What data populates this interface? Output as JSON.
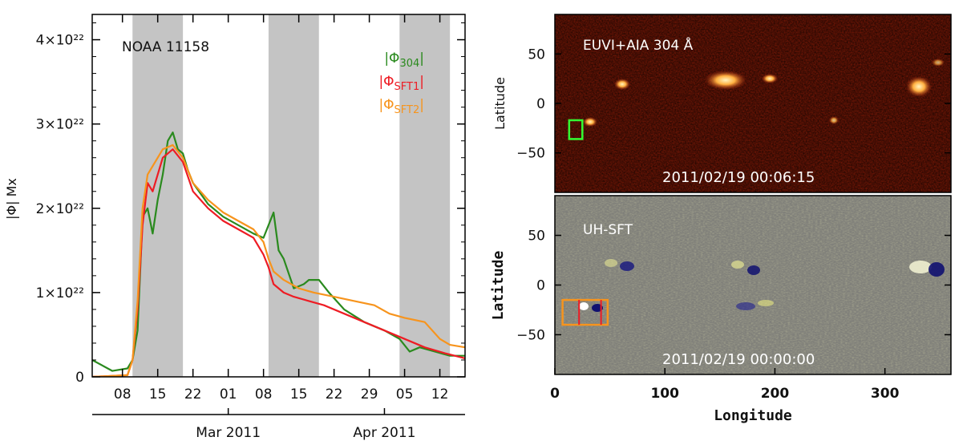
{
  "chart_data": [
    {
      "type": "line",
      "annotation": "NOAA 11158",
      "ylabel": "|Φ| Mx",
      "ylim": [
        0,
        4.3e+22
      ],
      "y_ticks": [
        {
          "value": 0,
          "label": "0"
        },
        {
          "value": 1e+22,
          "label": "1×10²²"
        },
        {
          "value": 2e+22,
          "label": "2×10²²"
        },
        {
          "value": 3e+22,
          "label": "3×10²²"
        },
        {
          "value": 4e+22,
          "label": "4×10²²"
        }
      ],
      "xlim": [
        "2011-02-02",
        "2011-04-17"
      ],
      "x_ticks": [
        {
          "date": "2011-02-08",
          "label": "08"
        },
        {
          "date": "2011-02-15",
          "label": "15"
        },
        {
          "date": "2011-02-22",
          "label": "22"
        },
        {
          "date": "2011-03-01",
          "label": "01"
        },
        {
          "date": "2011-03-08",
          "label": "08"
        },
        {
          "date": "2011-03-15",
          "label": "15"
        },
        {
          "date": "2011-03-22",
          "label": "22"
        },
        {
          "date": "2011-03-29",
          "label": "29"
        },
        {
          "date": "2011-04-05",
          "label": "05"
        },
        {
          "date": "2011-04-12",
          "label": "12"
        }
      ],
      "month_axis": [
        {
          "date": "2011-03-01",
          "label": "Mar 2011"
        },
        {
          "date": "2011-04-01",
          "label": "Apr 2011"
        }
      ],
      "shaded_intervals": [
        {
          "start": "2011-02-10",
          "end": "2011-02-20"
        },
        {
          "start": "2011-03-09",
          "end": "2011-03-19"
        },
        {
          "start": "2011-04-04",
          "end": "2011-04-14"
        }
      ],
      "shade_color": "#c4c4c4",
      "legend_position": "top-right",
      "series": [
        {
          "name": "|Φ304|",
          "name_base": "|Φ",
          "name_sub": "304",
          "name_end": "|",
          "color": "#2a8a1e",
          "x": [
            "2011-02-02",
            "2011-02-06",
            "2011-02-09",
            "2011-02-10",
            "2011-02-11",
            "2011-02-12",
            "2011-02-13",
            "2011-02-14",
            "2011-02-15",
            "2011-02-16",
            "2011-02-17",
            "2011-02-18",
            "2011-02-19",
            "2011-02-20",
            "2011-02-21",
            "2011-02-22",
            "2011-02-25",
            "2011-02-28",
            "2011-03-03",
            "2011-03-06",
            "2011-03-08",
            "2011-03-09",
            "2011-03-10",
            "2011-03-11",
            "2011-03-12",
            "2011-03-14",
            "2011-03-16",
            "2011-03-17",
            "2011-03-19",
            "2011-03-21",
            "2011-03-24",
            "2011-03-28",
            "2011-04-01",
            "2011-04-04",
            "2011-04-06",
            "2011-04-08",
            "2011-04-11",
            "2011-04-14",
            "2011-04-17"
          ],
          "y": [
            2e+21,
            7e+20,
            1e+21,
            2e+21,
            5.5e+21,
            1.9e+22,
            2e+22,
            1.7e+22,
            2.1e+22,
            2.4e+22,
            2.8e+22,
            2.9e+22,
            2.7e+22,
            2.65e+22,
            2.45e+22,
            2.3e+22,
            2.05e+22,
            1.9e+22,
            1.8e+22,
            1.7e+22,
            1.65e+22,
            1.8e+22,
            1.95e+22,
            1.5e+22,
            1.4e+22,
            1.05e+22,
            1.1e+22,
            1.15e+22,
            1.15e+22,
            1e+22,
            8e+21,
            6.5e+21,
            5.5e+21,
            4.5e+21,
            3e+21,
            3.5e+21,
            3e+21,
            2.5e+21,
            2.5e+21
          ]
        },
        {
          "name": "|ΦSFT1|",
          "name_base": "|Φ",
          "name_sub": "SFT1",
          "name_end": "|",
          "color": "#ee1c24",
          "x": [
            "2011-02-02",
            "2011-02-09",
            "2011-02-10",
            "2011-02-11",
            "2011-02-12",
            "2011-02-13",
            "2011-02-14",
            "2011-02-15",
            "2011-02-16",
            "2011-02-18",
            "2011-02-20",
            "2011-02-22",
            "2011-02-25",
            "2011-02-28",
            "2011-03-03",
            "2011-03-06",
            "2011-03-08",
            "2011-03-09",
            "2011-03-10",
            "2011-03-12",
            "2011-03-14",
            "2011-03-17",
            "2011-03-20",
            "2011-03-24",
            "2011-03-28",
            "2011-04-01",
            "2011-04-05",
            "2011-04-09",
            "2011-04-13",
            "2011-04-17"
          ],
          "y": [
            0.0,
            2e+20,
            2e+21,
            8e+21,
            1.8e+22,
            2.3e+22,
            2.2e+22,
            2.4e+22,
            2.6e+22,
            2.7e+22,
            2.55e+22,
            2.2e+22,
            2e+22,
            1.85e+22,
            1.75e+22,
            1.65e+22,
            1.45e+22,
            1.3e+22,
            1.1e+22,
            1e+22,
            9.5e+21,
            9e+21,
            8.5e+21,
            7.5e+21,
            6.5e+21,
            5.5e+21,
            4.5e+21,
            3.5e+21,
            2.8e+21,
            2.2e+21
          ]
        },
        {
          "name": "|ΦSFT2|",
          "name_base": "|Φ",
          "name_sub": "SFT2",
          "name_end": "|",
          "color": "#f7941d",
          "x": [
            "2011-02-02",
            "2011-02-09",
            "2011-02-10",
            "2011-02-11",
            "2011-02-12",
            "2011-02-13",
            "2011-02-14",
            "2011-02-15",
            "2011-02-16",
            "2011-02-18",
            "2011-02-20",
            "2011-02-22",
            "2011-02-25",
            "2011-02-28",
            "2011-03-03",
            "2011-03-06",
            "2011-03-08",
            "2011-03-09",
            "2011-03-10",
            "2011-03-12",
            "2011-03-15",
            "2011-03-18",
            "2011-03-22",
            "2011-03-26",
            "2011-03-30",
            "2011-04-02",
            "2011-04-05",
            "2011-04-09",
            "2011-04-12",
            "2011-04-14",
            "2011-04-17"
          ],
          "y": [
            0.0,
            2e+20,
            2e+21,
            9e+21,
            2e+22,
            2.4e+22,
            2.5e+22,
            2.6e+22,
            2.7e+22,
            2.75e+22,
            2.6e+22,
            2.3e+22,
            2.1e+22,
            1.95e+22,
            1.85e+22,
            1.75e+22,
            1.6e+22,
            1.4e+22,
            1.25e+22,
            1.15e+22,
            1.05e+22,
            1e+22,
            9.5e+21,
            9e+21,
            8.5e+21,
            7.5e+21,
            7e+21,
            6.5e+21,
            4.5e+21,
            3.8e+21,
            3.5e+21
          ]
        }
      ]
    },
    {
      "type": "heatmap",
      "label": "EUVI+AIA 304 Å",
      "timestamp": "2011/02/19 00:06:15",
      "ylabel": "Latitude",
      "xlim": [
        0,
        360
      ],
      "ylim": [
        -90,
        90
      ],
      "y_ticks": [
        "50",
        "0",
        "−50"
      ],
      "y_tick_values": [
        50,
        0,
        -50
      ],
      "colormap": [
        "#2a0000",
        "#c03010",
        "#ffe0a0"
      ],
      "box": {
        "color": "#33ff33",
        "lon": [
          13,
          25
        ],
        "lat": [
          -36,
          -17
        ]
      }
    },
    {
      "type": "heatmap",
      "label": "UH-SFT",
      "timestamp": "2011/02/19 00:00:00",
      "xlabel": "Longitude",
      "ylabel": "Latitude",
      "xlim": [
        0,
        360
      ],
      "ylim": [
        -90,
        90
      ],
      "x_ticks": [
        "0",
        "100",
        "200",
        "300"
      ],
      "x_tick_values": [
        0,
        100,
        200,
        300
      ],
      "y_ticks": [
        "50",
        "0",
        "−50"
      ],
      "y_tick_values": [
        50,
        0,
        -50
      ],
      "colormap": [
        "#101070",
        "#80807a",
        "#f0f060"
      ],
      "box": {
        "color": "#f7941d",
        "lon": [
          7,
          48
        ],
        "lat": [
          -40,
          -15
        ]
      },
      "inner_lines": {
        "color": "#ee1c24",
        "lon": [
          22,
          42
        ]
      }
    }
  ]
}
